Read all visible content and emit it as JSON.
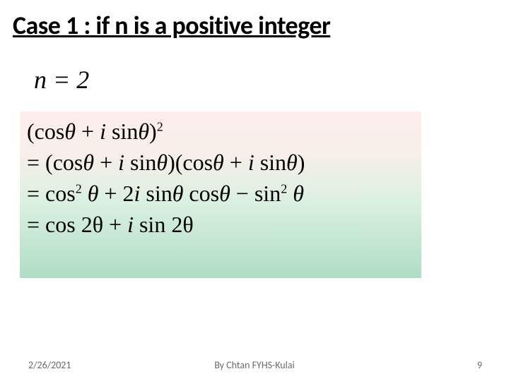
{
  "title": "Case  1 :  if n is a positive integer",
  "eq_n": "n = 2",
  "mathbox": {
    "background_gradient": [
      "#fdeeed",
      "#f7efe9",
      "#daf0e0",
      "#aeddc6"
    ],
    "font_family": "Times New Roman",
    "base_fontsize": 32,
    "sup_fontsize": 18,
    "lines": {
      "l1_lparen": "(",
      "l1_cos": "cos",
      "l1_th1": "θ",
      "l1_plus": " + ",
      "l1_i": "i ",
      "l1_sin": "sin",
      "l1_th2": "θ",
      "l1_rparen": ")",
      "l1_exp": "2",
      "l2_eq": "= ",
      "l2_lp1": "(",
      "l2_cos1": "cos",
      "l2_th1": "θ",
      "l2_plus1": " + ",
      "l2_i1": "i ",
      "l2_sin1": "sin",
      "l2_th2": "θ",
      "l2_rp1": ")",
      "l2_lp2": "(",
      "l2_cos2": "cos",
      "l2_th3": "θ",
      "l2_plus2": " + ",
      "l2_i2": "i ",
      "l2_sin2": "sin",
      "l2_th4": "θ",
      "l2_rp2": ")",
      "l3_eq": "= ",
      "l3_cos": "cos",
      "l3_sq1": "2",
      "l3_sp1": " ",
      "l3_th1": "θ",
      "l3_plus": " + 2",
      "l3_i": "i ",
      "l3_sin": "sin",
      "l3_th2": "θ ",
      "l3_cos2": "cos",
      "l3_th3": "θ",
      "l3_minus": " − ",
      "l3_sin2": "sin",
      "l3_sq2": "2",
      "l3_sp2": " ",
      "l3_th4": "θ",
      "l4_eq": "= ",
      "l4_cos": "cos ",
      "l4_2th1": "2θ",
      "l4_plus": " + ",
      "l4_i": "i ",
      "l4_sin": "sin ",
      "l4_2th2": "2θ"
    }
  },
  "footer": {
    "date": "2/26/2021",
    "author": "By Chtan   FYHS-Kulai",
    "page": "9"
  },
  "colors": {
    "text": "#000000",
    "footer": "#6b6b6b",
    "background": "#ffffff"
  }
}
